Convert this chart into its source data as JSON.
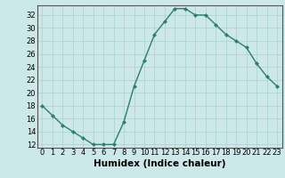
{
  "x": [
    0,
    1,
    2,
    3,
    4,
    5,
    6,
    7,
    8,
    9,
    10,
    11,
    12,
    13,
    14,
    15,
    16,
    17,
    18,
    19,
    20,
    21,
    22,
    23
  ],
  "y": [
    18,
    16.5,
    15,
    14,
    13,
    12,
    12,
    12,
    15.5,
    21,
    25,
    29,
    31,
    33,
    33,
    32,
    32,
    30.5,
    29,
    28,
    27,
    24.5,
    22.5,
    21
  ],
  "line_color": "#2e7d6e",
  "marker": "D",
  "marker_size": 2.0,
  "bg_color": "#cce8e8",
  "grid_color": "#aed4d4",
  "xlabel": "Humidex (Indice chaleur)",
  "xlim": [
    -0.5,
    23.5
  ],
  "ylim": [
    11.5,
    33.5
  ],
  "yticks": [
    12,
    14,
    16,
    18,
    20,
    22,
    24,
    26,
    28,
    30,
    32
  ],
  "xticks": [
    0,
    1,
    2,
    3,
    4,
    5,
    6,
    7,
    8,
    9,
    10,
    11,
    12,
    13,
    14,
    15,
    16,
    17,
    18,
    19,
    20,
    21,
    22,
    23
  ],
  "xlabel_fontsize": 7.5,
  "tick_fontsize": 6.0,
  "line_width": 1.0
}
